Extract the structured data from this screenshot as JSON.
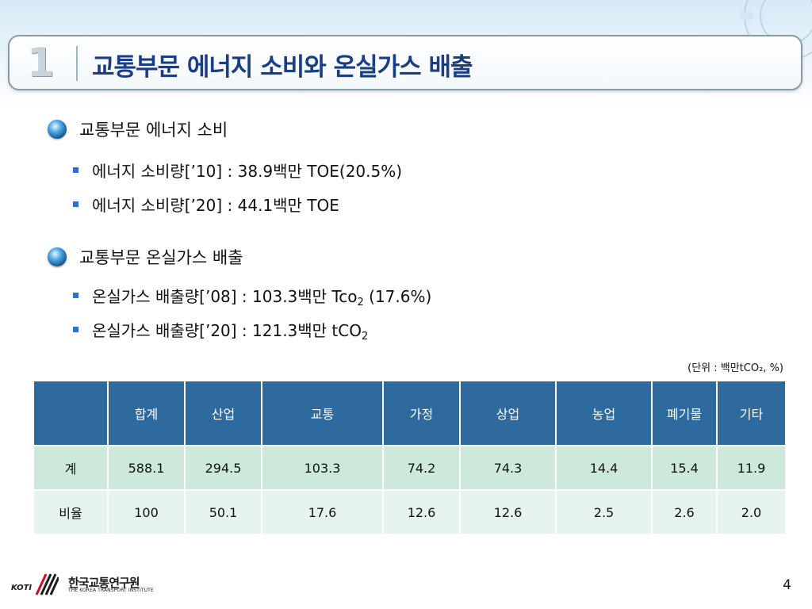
{
  "title": {
    "number": "1",
    "text": "교통부문 에너지 소비와 온실가스 배출"
  },
  "sections": [
    {
      "heading": "교통부문 에너지 소비",
      "bullets": [
        {
          "text": "에너지 소비량[’10] : 38.9백만 TOE(20.5%)"
        },
        {
          "text": "에너지 소비량[’20] : 44.1백만 TOE"
        }
      ]
    },
    {
      "heading": "교통부문 온실가스 배출",
      "bullets": [
        {
          "pre": "온실가스 배출량[’08] : 103.3백만 Tco",
          "sub": "2",
          "post": " (17.6%)"
        },
        {
          "pre": "온실가스 배출량[’20] : 121.3백만 tCO",
          "sub": "2",
          "post": ""
        }
      ]
    }
  ],
  "unit_note": "(단위 : 백만tCO₂, %)",
  "table": {
    "headers": [
      "",
      "합계",
      "산업",
      "교통",
      "가정",
      "상업",
      "농업",
      "폐기물",
      "기타"
    ],
    "rows": [
      [
        "계",
        "588.1",
        "294.5",
        "103.3",
        "74.2",
        "74.3",
        "14.4",
        "15.4",
        "11.9"
      ],
      [
        "비율",
        "100",
        "50.1",
        "17.6",
        "12.6",
        "12.6",
        "2.5",
        "2.6",
        "2.0"
      ]
    ]
  },
  "footer": {
    "logo_ko": "한국교통연구원",
    "logo_en": "THE KOREA TRANSPORT INSTITUTE",
    "logo_abbr": "KOTI",
    "page_number": "4"
  },
  "colors": {
    "title": "#1a3e86",
    "header_bg": "#2e6a9e",
    "row1_bg": "#cde9dc",
    "row2_bg": "#e7f4ee",
    "bullet": "#2f6fd0"
  }
}
